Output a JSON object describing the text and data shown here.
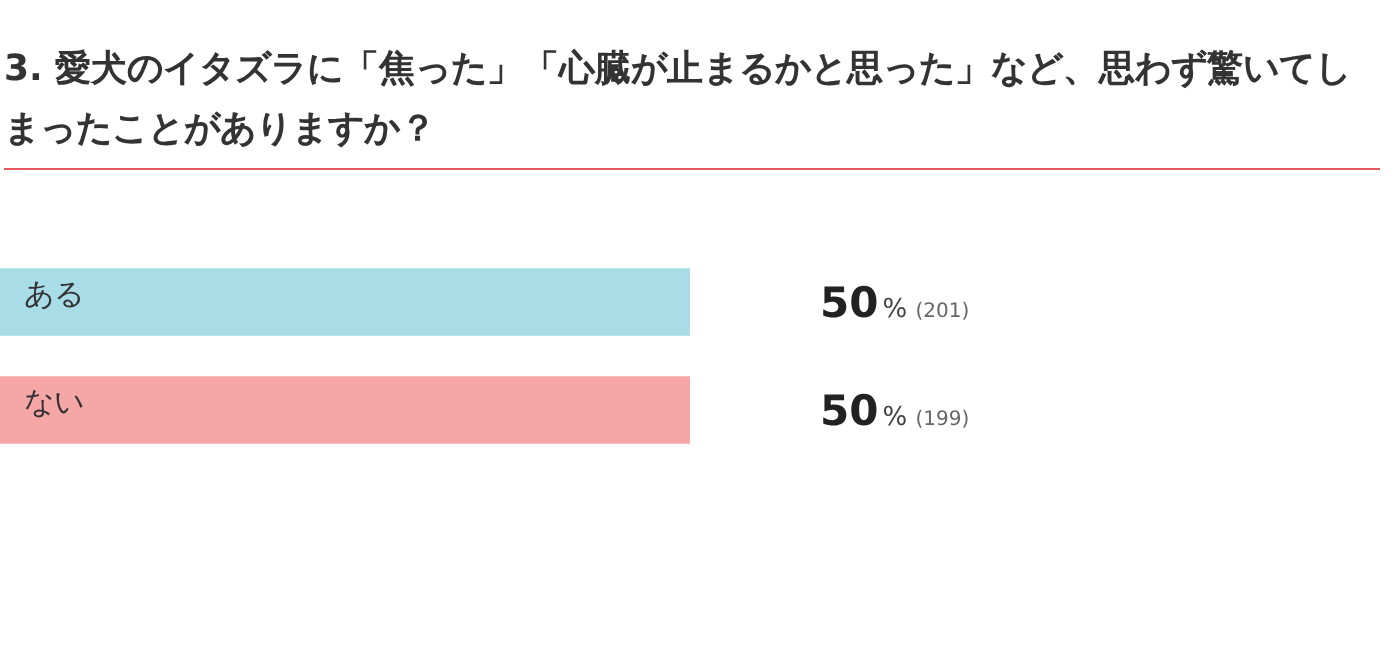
{
  "chart_data": {
    "type": "bar",
    "orientation": "horizontal",
    "title": "3. 愛犬のイタズラに「焦った」「心臓が止まるかと思った」など、思わず驚いてしまったことがありますか？",
    "categories": [
      "ある",
      "ない"
    ],
    "values": [
      50,
      50
    ],
    "colors": [
      "#a8dde8",
      "#f7a6a8"
    ],
    "value_labels": [
      "50% (201)",
      "50% (199)"
    ],
    "legend": false
  }
}
